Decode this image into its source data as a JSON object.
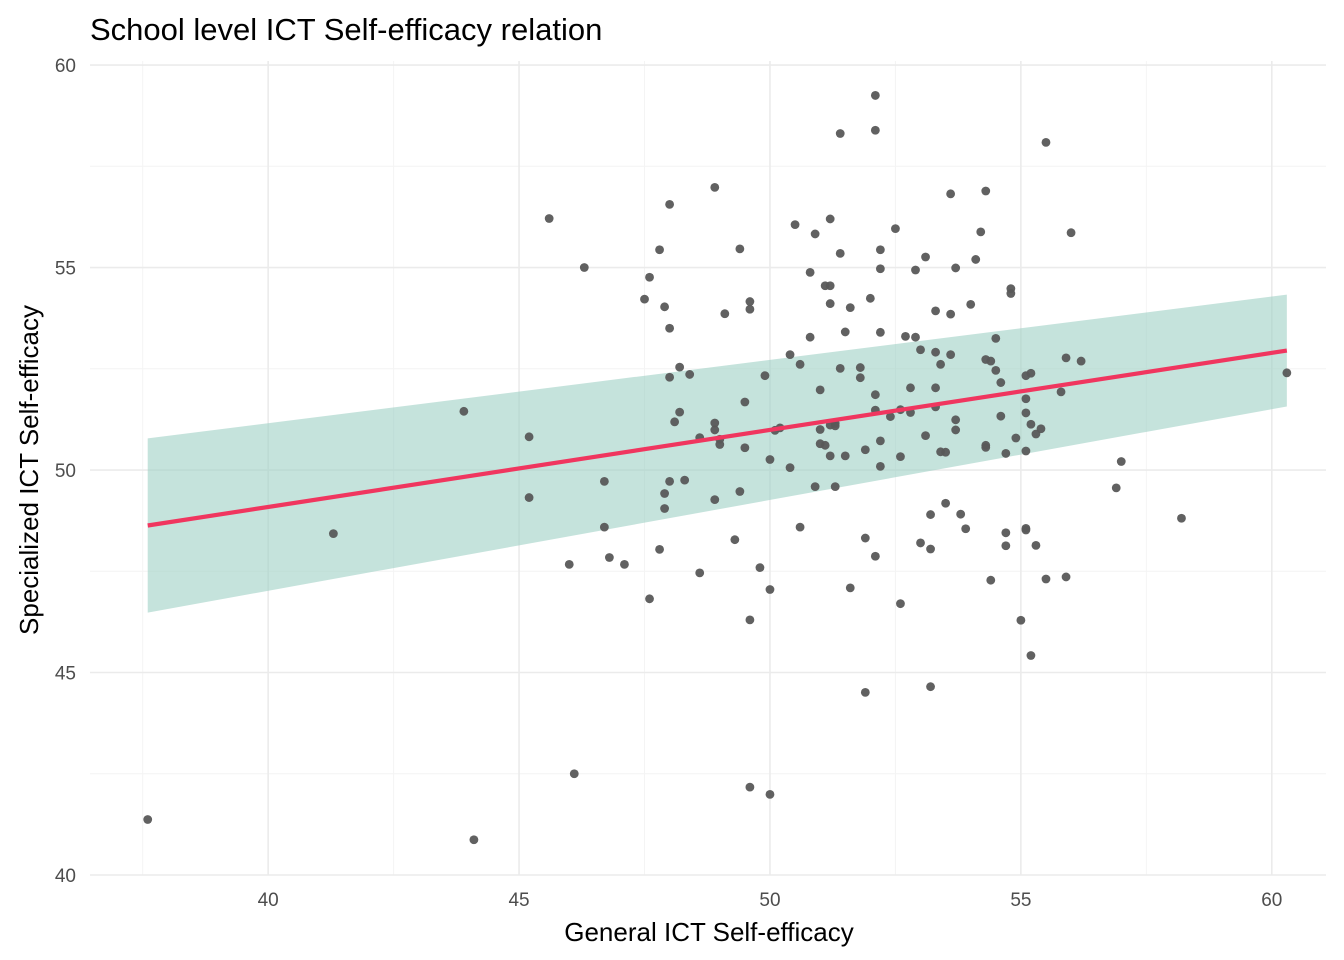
{
  "chart_data": {
    "type": "scatter",
    "title": "School level ICT Self-efficacy relation",
    "xlabel": "General ICT Self-efficacy",
    "ylabel": "Specialized ICT Self-efficacy",
    "xlim": [
      36.45,
      61.08
    ],
    "ylim": [
      40,
      60.1
    ],
    "x_ticks": [
      40,
      45,
      50,
      55,
      60
    ],
    "x_tick_labels": [
      "40",
      "45",
      "50",
      "55",
      "60"
    ],
    "y_ticks": [
      40,
      45,
      50,
      55,
      60
    ],
    "y_tick_labels": [
      "40",
      "45",
      "50",
      "55",
      "60"
    ],
    "grid": true,
    "colors": {
      "points": "#595959",
      "fit_line": "#f0365f",
      "ribbon": "#9bcfc3"
    },
    "fit": {
      "x": [
        37.6,
        60.3
      ],
      "y": [
        48.63,
        52.95
      ],
      "ci_lower": [
        46.48,
        51.57
      ],
      "ci_upper": [
        50.78,
        54.33
      ]
    },
    "points": [
      [
        37.6,
        41.37
      ],
      [
        41.3,
        48.43
      ],
      [
        43.9,
        51.45
      ],
      [
        44.1,
        40.87
      ],
      [
        45.2,
        50.82
      ],
      [
        45.2,
        49.32
      ],
      [
        45.6,
        56.21
      ],
      [
        46.0,
        47.67
      ],
      [
        46.1,
        42.5
      ],
      [
        46.3,
        55.0
      ],
      [
        46.7,
        49.72
      ],
      [
        46.7,
        48.59
      ],
      [
        46.8,
        47.84
      ],
      [
        47.1,
        47.67
      ],
      [
        47.5,
        54.22
      ],
      [
        47.6,
        54.76
      ],
      [
        47.6,
        46.82
      ],
      [
        47.8,
        48.04
      ],
      [
        47.8,
        55.44
      ],
      [
        47.9,
        49.42
      ],
      [
        47.9,
        49.05
      ],
      [
        47.9,
        54.03
      ],
      [
        48.0,
        53.5
      ],
      [
        48.0,
        49.72
      ],
      [
        48.0,
        56.56
      ],
      [
        48.0,
        52.29
      ],
      [
        48.1,
        51.19
      ],
      [
        48.2,
        51.43
      ],
      [
        48.2,
        52.54
      ],
      [
        48.3,
        49.75
      ],
      [
        48.4,
        52.36
      ],
      [
        48.6,
        47.46
      ],
      [
        48.6,
        50.8
      ],
      [
        48.9,
        51.16
      ],
      [
        48.9,
        56.98
      ],
      [
        48.9,
        49.27
      ],
      [
        48.9,
        50.99
      ],
      [
        49.0,
        50.63
      ],
      [
        49.0,
        50.76
      ],
      [
        49.1,
        53.86
      ],
      [
        49.3,
        48.28
      ],
      [
        49.4,
        55.46
      ],
      [
        49.4,
        49.47
      ],
      [
        49.5,
        51.68
      ],
      [
        49.5,
        50.55
      ],
      [
        49.6,
        53.97
      ],
      [
        49.6,
        54.16
      ],
      [
        49.6,
        46.3
      ],
      [
        49.6,
        42.17
      ],
      [
        49.8,
        47.59
      ],
      [
        49.9,
        52.33
      ],
      [
        50.0,
        47.05
      ],
      [
        50.0,
        41.99
      ],
      [
        50.0,
        50.26
      ],
      [
        50.1,
        50.98
      ],
      [
        50.2,
        51.04
      ],
      [
        50.4,
        52.85
      ],
      [
        50.4,
        50.06
      ],
      [
        50.5,
        56.06
      ],
      [
        50.6,
        52.61
      ],
      [
        50.6,
        48.59
      ],
      [
        50.8,
        53.28
      ],
      [
        50.8,
        54.88
      ],
      [
        50.9,
        49.59
      ],
      [
        50.9,
        55.83
      ],
      [
        51.0,
        51.98
      ],
      [
        51.0,
        51.0
      ],
      [
        51.0,
        50.65
      ],
      [
        51.1,
        50.61
      ],
      [
        51.1,
        54.55
      ],
      [
        51.2,
        56.2
      ],
      [
        51.2,
        54.55
      ],
      [
        51.2,
        54.11
      ],
      [
        51.2,
        51.11
      ],
      [
        51.2,
        50.35
      ],
      [
        51.3,
        51.09
      ],
      [
        51.3,
        51.15
      ],
      [
        51.3,
        49.59
      ],
      [
        51.4,
        55.35
      ],
      [
        51.4,
        58.31
      ],
      [
        51.4,
        52.51
      ],
      [
        51.5,
        53.41
      ],
      [
        51.5,
        50.35
      ],
      [
        51.6,
        54.01
      ],
      [
        51.6,
        47.09
      ],
      [
        51.8,
        52.53
      ],
      [
        51.8,
        52.28
      ],
      [
        51.9,
        44.51
      ],
      [
        51.9,
        48.32
      ],
      [
        51.9,
        50.5
      ],
      [
        52.0,
        54.24
      ],
      [
        52.1,
        51.86
      ],
      [
        52.1,
        51.48
      ],
      [
        52.1,
        47.87
      ],
      [
        52.1,
        59.25
      ],
      [
        52.1,
        58.39
      ],
      [
        52.2,
        55.44
      ],
      [
        52.2,
        54.97
      ],
      [
        52.2,
        53.4
      ],
      [
        52.2,
        50.72
      ],
      [
        52.2,
        50.09
      ],
      [
        52.4,
        51.32
      ],
      [
        52.5,
        55.96
      ],
      [
        52.6,
        50.33
      ],
      [
        52.6,
        46.7
      ],
      [
        52.6,
        51.49
      ],
      [
        52.7,
        53.3
      ],
      [
        52.8,
        52.03
      ],
      [
        52.8,
        51.42
      ],
      [
        52.9,
        54.94
      ],
      [
        52.9,
        53.28
      ],
      [
        53.0,
        52.97
      ],
      [
        53.0,
        48.2
      ],
      [
        53.1,
        50.85
      ],
      [
        53.1,
        55.26
      ],
      [
        53.2,
        44.65
      ],
      [
        53.2,
        48.9
      ],
      [
        53.2,
        48.05
      ],
      [
        53.3,
        53.93
      ],
      [
        53.3,
        52.91
      ],
      [
        53.3,
        52.03
      ],
      [
        53.3,
        51.56
      ],
      [
        53.4,
        50.45
      ],
      [
        53.4,
        52.61
      ],
      [
        53.5,
        50.44
      ],
      [
        53.5,
        49.18
      ],
      [
        53.6,
        52.85
      ],
      [
        53.6,
        56.82
      ],
      [
        53.6,
        53.85
      ],
      [
        53.7,
        54.99
      ],
      [
        53.7,
        51.24
      ],
      [
        53.7,
        50.99
      ],
      [
        53.8,
        48.91
      ],
      [
        53.9,
        48.55
      ],
      [
        54.0,
        54.09
      ],
      [
        54.1,
        55.2
      ],
      [
        54.2,
        55.88
      ],
      [
        54.3,
        52.73
      ],
      [
        54.3,
        50.61
      ],
      [
        54.3,
        50.56
      ],
      [
        54.3,
        56.89
      ],
      [
        54.4,
        52.69
      ],
      [
        54.4,
        47.28
      ],
      [
        54.5,
        53.25
      ],
      [
        54.5,
        52.46
      ],
      [
        54.6,
        51.33
      ],
      [
        54.6,
        52.16
      ],
      [
        54.7,
        50.41
      ],
      [
        54.7,
        48.45
      ],
      [
        54.7,
        48.13
      ],
      [
        54.8,
        54.36
      ],
      [
        54.8,
        54.48
      ],
      [
        54.9,
        50.79
      ],
      [
        55.0,
        46.29
      ],
      [
        55.1,
        52.33
      ],
      [
        55.1,
        51.76
      ],
      [
        55.1,
        51.41
      ],
      [
        55.1,
        50.47
      ],
      [
        55.1,
        48.56
      ],
      [
        55.1,
        48.52
      ],
      [
        55.2,
        52.39
      ],
      [
        55.2,
        45.42
      ],
      [
        55.2,
        51.13
      ],
      [
        55.3,
        50.89
      ],
      [
        55.3,
        48.14
      ],
      [
        55.4,
        51.02
      ],
      [
        55.5,
        58.09
      ],
      [
        55.5,
        47.31
      ],
      [
        55.8,
        51.93
      ],
      [
        55.9,
        47.36
      ],
      [
        55.9,
        52.77
      ],
      [
        56.0,
        55.86
      ],
      [
        56.2,
        52.69
      ],
      [
        56.9,
        49.56
      ],
      [
        57.0,
        50.21
      ],
      [
        58.2,
        48.81
      ],
      [
        60.3,
        52.4
      ]
    ]
  }
}
